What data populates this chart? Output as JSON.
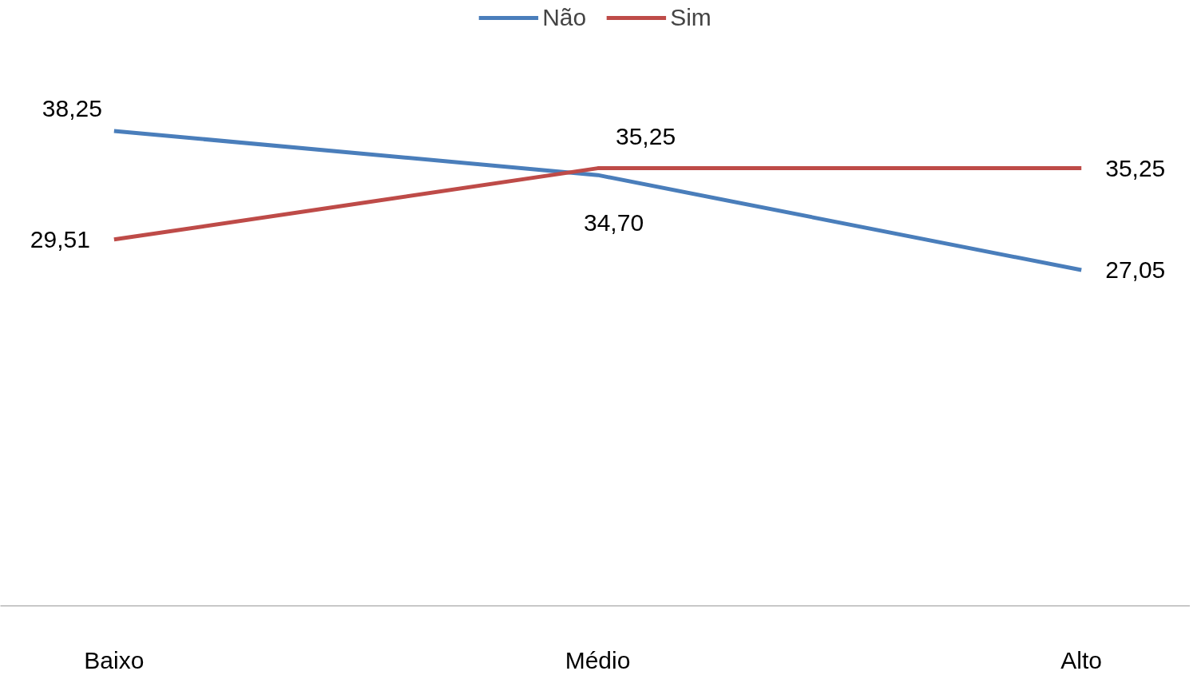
{
  "chart_data": {
    "type": "line",
    "categories": [
      "Baixo",
      "Médio",
      "Alto"
    ],
    "series": [
      {
        "name": "Não",
        "color": "#4a7ebb",
        "values": [
          38.25,
          34.7,
          27.05
        ],
        "value_labels": [
          "38,25",
          "34,70",
          "27,05"
        ]
      },
      {
        "name": "Sim",
        "color": "#be4b48",
        "values": [
          29.51,
          35.25,
          35.25
        ],
        "value_labels": [
          "29,51",
          "35,25",
          "35,25"
        ]
      }
    ],
    "tick_labels": "x",
    "grid": false,
    "legend": "top",
    "marker": "none",
    "line_style": "solid"
  }
}
